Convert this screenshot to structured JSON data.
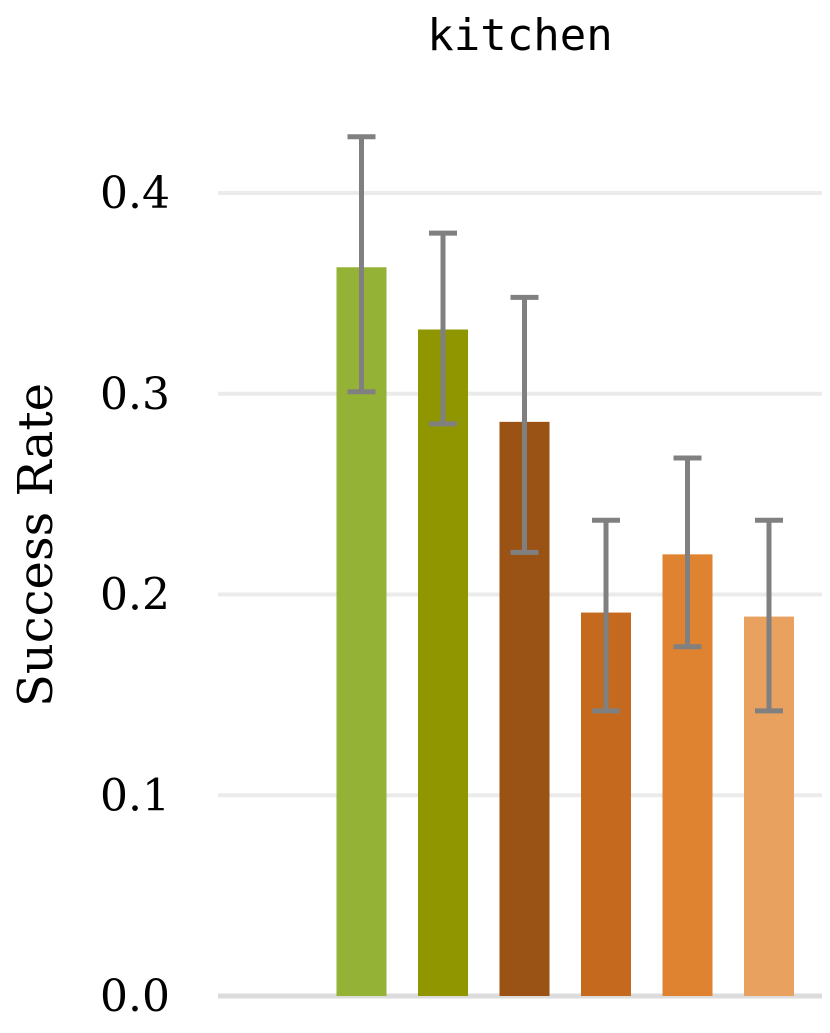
{
  "chart_data": {
    "type": "bar",
    "title": "kitchen",
    "xlabel": "",
    "ylabel": "Success Rate",
    "ylim": [
      0,
      0.4
    ],
    "yticks": [
      "0.0",
      "0.1",
      "0.2",
      "0.3",
      "0.4"
    ],
    "grid": true,
    "series": [
      {
        "value": 0.363,
        "err_low": 0.301,
        "err_high": 0.428,
        "color": "#93b236"
      },
      {
        "value": 0.332,
        "err_low": 0.285,
        "err_high": 0.38,
        "color": "#909600"
      },
      {
        "value": 0.286,
        "err_low": 0.221,
        "err_high": 0.348,
        "color": "#9a5215"
      },
      {
        "value": 0.191,
        "err_low": 0.142,
        "err_high": 0.237,
        "color": "#c4691d"
      },
      {
        "value": 0.22,
        "err_low": 0.174,
        "err_high": 0.268,
        "color": "#e08331"
      },
      {
        "value": 0.189,
        "err_low": 0.142,
        "err_high": 0.237,
        "color": "#e9a15f"
      }
    ],
    "colors": {
      "grid": "#ebebeb",
      "baseline": "#dcdcdc",
      "errorbar": "#808080"
    }
  }
}
